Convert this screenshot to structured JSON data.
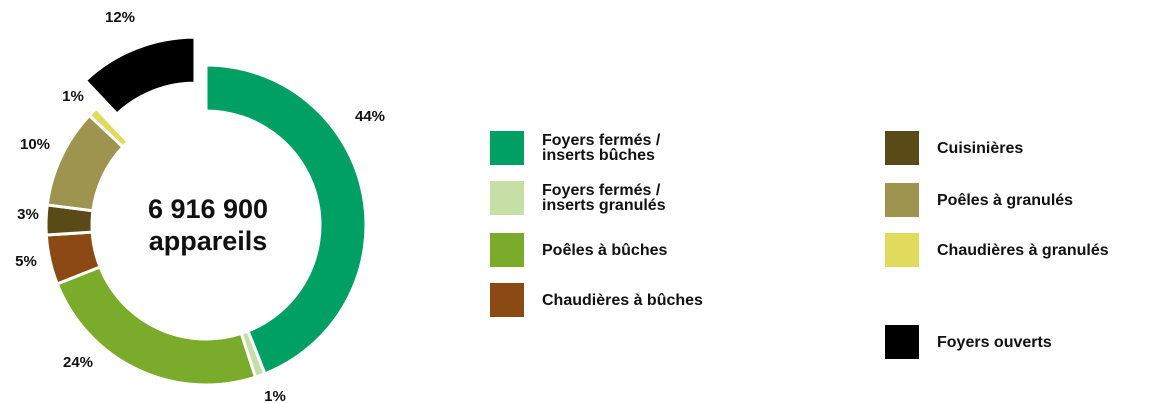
{
  "chart_data": {
    "type": "donut",
    "center_text": [
      "6 916 900",
      "appareils"
    ],
    "categories": [
      "Foyers fermés / inserts bûches",
      "Foyers fermés / inserts granulés",
      "Poêles à bûches",
      "Chaudières à bûches",
      "Cuisinières",
      "Poêles à granulés",
      "Chaudières à granulés",
      "Foyers ouverts"
    ],
    "values": [
      44,
      1,
      24,
      5,
      3,
      10,
      1,
      12
    ],
    "value_labels": [
      "44%",
      "1%",
      "24%",
      "5%",
      "3%",
      "10%",
      "1%",
      "12%"
    ],
    "colors": [
      "#00a064",
      "#c6dfa6",
      "#7aab2a",
      "#8b4a14",
      "#594a18",
      "#9e9450",
      "#e0db5c",
      "#000000"
    ],
    "exploded": [
      7
    ]
  }
}
